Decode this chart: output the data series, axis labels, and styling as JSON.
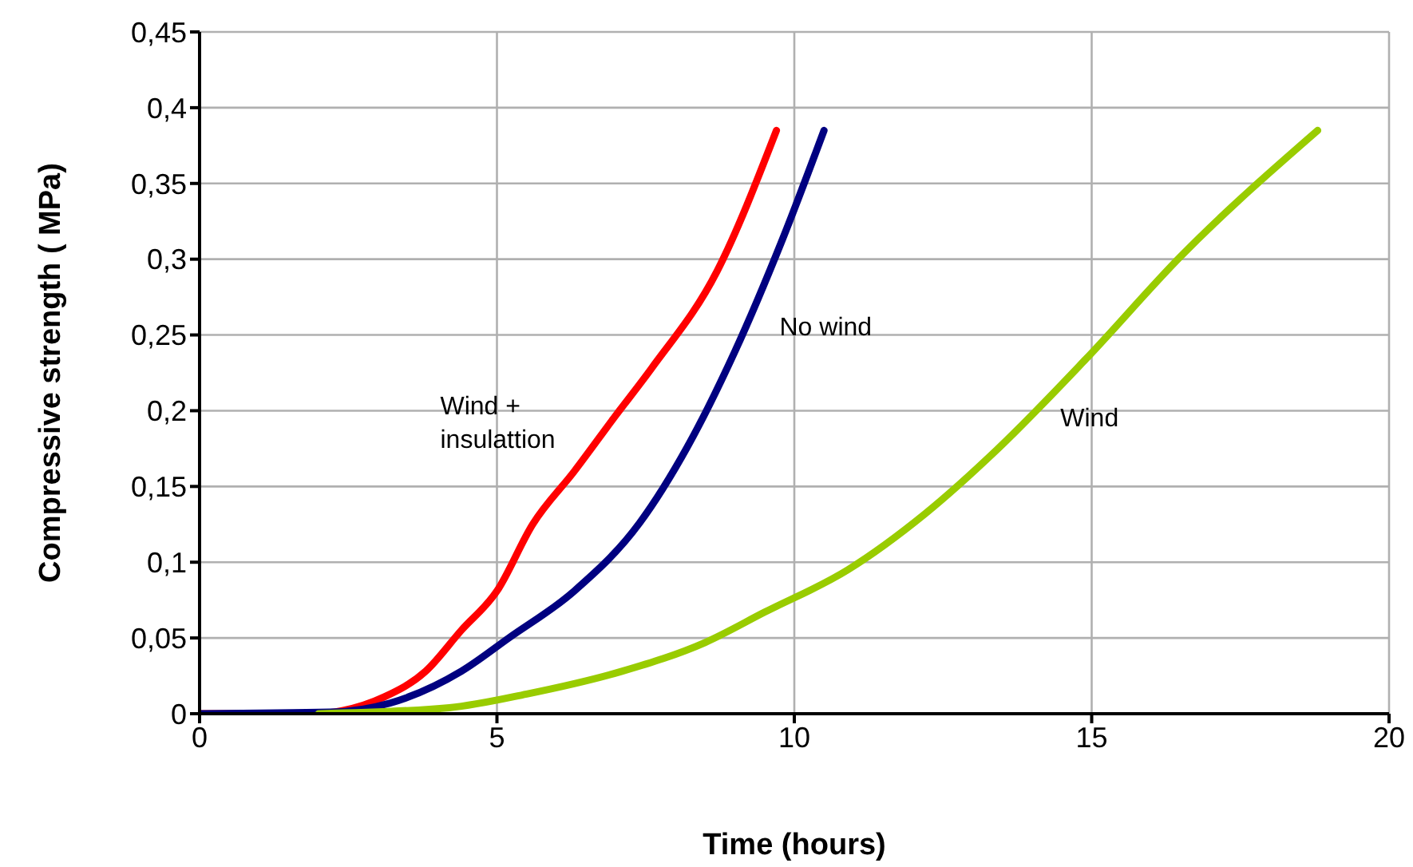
{
  "chart_data": {
    "type": "line",
    "xlabel": "Time  (hours)",
    "ylabel": "Compressive strength ( MPa)",
    "xlim": [
      0,
      20
    ],
    "xticks": [
      0,
      5,
      10,
      15,
      20
    ],
    "ylim": [
      0,
      0.45
    ],
    "yticks": [
      {
        "value": 0,
        "label": "0"
      },
      {
        "value": 0.05,
        "label": "0,05"
      },
      {
        "value": 0.1,
        "label": "0,1"
      },
      {
        "value": 0.15,
        "label": "0,15"
      },
      {
        "value": 0.2,
        "label": "0,2"
      },
      {
        "value": 0.25,
        "label": "0,25"
      },
      {
        "value": 0.3,
        "label": "0,3"
      },
      {
        "value": 0.35,
        "label": "0,35"
      },
      {
        "value": 0.4,
        "label": "0,4"
      },
      {
        "value": 0.45,
        "label": "0,45"
      }
    ],
    "grid": true,
    "marker": "none",
    "line_style": "solid",
    "series": [
      {
        "name": "Wind + insulattion",
        "color": "#ff0000",
        "x": [
          0,
          1.9,
          2.4,
          3.1,
          3.8,
          4.4,
          5.0,
          5.6,
          6.3,
          7.0,
          7.6,
          8.7,
          9.7
        ],
        "values": [
          0,
          0,
          0.002,
          0.011,
          0.028,
          0.055,
          0.081,
          0.125,
          0.16,
          0.197,
          0.228,
          0.292,
          0.385
        ]
      },
      {
        "name": "No wind",
        "color": "#000080",
        "x": [
          0,
          2.2,
          3.2,
          4.4,
          5.2,
          6.3,
          7.4,
          8.2,
          9.0,
          9.8,
          10.5
        ],
        "values": [
          0,
          0.001,
          0.007,
          0.028,
          0.05,
          0.081,
          0.126,
          0.176,
          0.239,
          0.313,
          0.385
        ]
      },
      {
        "name": "Wind",
        "color": "#99cc00",
        "x": [
          2.0,
          4.2,
          5.5,
          7.1,
          8.5,
          9.5,
          10.9,
          12.2,
          13.4,
          14.9,
          16.5,
          18.8
        ],
        "values": [
          0,
          0.004,
          0.013,
          0.028,
          0.047,
          0.067,
          0.095,
          0.132,
          0.174,
          0.234,
          0.302,
          0.385
        ]
      }
    ]
  }
}
